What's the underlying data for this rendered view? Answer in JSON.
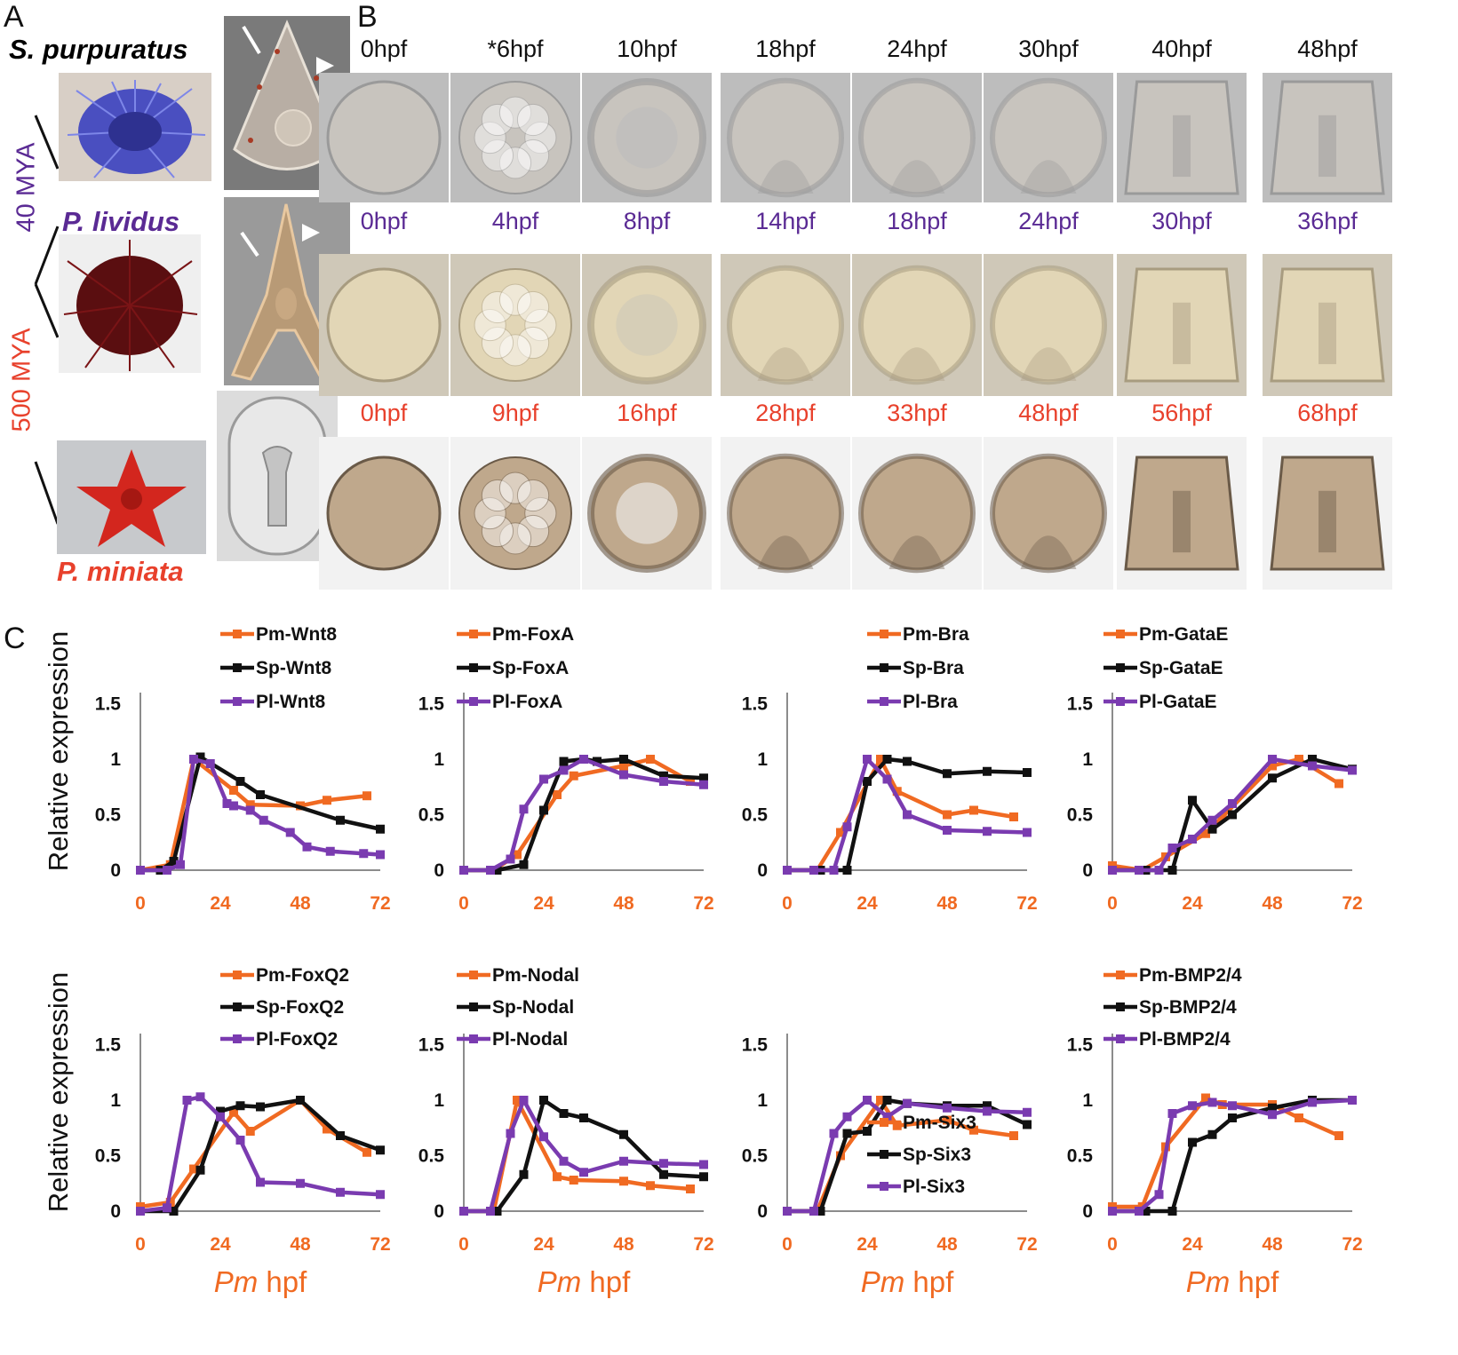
{
  "panels": {
    "a": "A",
    "b": "B",
    "c": "C"
  },
  "species": {
    "sp": {
      "name": "S. purpuratus",
      "color": "#111111"
    },
    "pl": {
      "name": "P. lividus",
      "color": "#5a2a94"
    },
    "pm": {
      "name": "P. miniata",
      "color": "#e8412c"
    }
  },
  "divergence": {
    "mya40": {
      "label": "40 MYA",
      "color": "#5a2a94"
    },
    "mya500": {
      "label": "500 MYA",
      "color": "#e8412c"
    }
  },
  "colors": {
    "pm": "#f06a22",
    "sp": "#111111",
    "pl": "#7a3bb0",
    "axis_ticks_x": "#f06a22"
  },
  "timepoints": {
    "sp": [
      "0hpf",
      "*6hpf",
      "10hpf",
      "18hpf",
      "24hpf",
      "30hpf",
      "40hpf",
      "48hpf"
    ],
    "pl": [
      "0hpf",
      "4hpf",
      "8hpf",
      "14hpf",
      "18hpf",
      "24hpf",
      "30hpf",
      "36hpf"
    ],
    "pm": [
      "0hpf",
      "9hpf",
      "16hpf",
      "28hpf",
      "33hpf",
      "48hpf",
      "56hpf",
      "68hpf"
    ]
  },
  "chart_common": {
    "ylabel": "Relative expression",
    "xlabel_italic": "Pm",
    "xlabel_rest": " hpf",
    "xticks": [
      "0",
      "24",
      "48",
      "72"
    ],
    "yticks": [
      "0",
      "0.5",
      "1",
      "1.5"
    ]
  },
  "chart_data": [
    {
      "type": "line",
      "gene": "Wnt8",
      "xlim": [
        0,
        72
      ],
      "ylim": [
        0,
        1.5
      ],
      "series": [
        {
          "name": "Pm-Wnt8",
          "x": [
            0,
            9,
            16,
            28,
            33,
            48,
            56,
            68
          ],
          "y": [
            0,
            0.05,
            1.0,
            0.72,
            0.59,
            0.58,
            0.63,
            0.67
          ]
        },
        {
          "name": "Sp-Wnt8",
          "x": [
            0,
            6,
            10,
            18,
            30,
            36,
            60,
            72
          ],
          "y": [
            0,
            0,
            0.08,
            1.02,
            0.8,
            0.68,
            0.45,
            0.37
          ]
        },
        {
          "name": "Pl-Wnt8",
          "x": [
            0,
            8,
            12,
            16,
            21,
            26,
            28,
            33,
            37,
            45,
            50,
            57,
            67,
            72
          ],
          "y": [
            0,
            0,
            0.05,
            1.0,
            0.96,
            0.6,
            0.58,
            0.54,
            0.45,
            0.34,
            0.21,
            0.17,
            0.15,
            0.14
          ]
        }
      ]
    },
    {
      "type": "line",
      "gene": "FoxA",
      "xlim": [
        0,
        72
      ],
      "ylim": [
        0,
        1.5
      ],
      "series": [
        {
          "name": "Pm-FoxA",
          "x": [
            0,
            9,
            16,
            28,
            33,
            48,
            56,
            68
          ],
          "y": [
            0,
            0,
            0.14,
            0.68,
            0.85,
            0.94,
            1.0,
            0.8
          ]
        },
        {
          "name": "Sp-FoxA",
          "x": [
            0,
            10,
            18,
            24,
            30,
            36,
            40,
            48,
            60,
            72
          ],
          "y": [
            0,
            0,
            0.05,
            0.54,
            0.98,
            1.0,
            0.98,
            1.0,
            0.85,
            0.83
          ]
        },
        {
          "name": "Pl-FoxA",
          "x": [
            0,
            8,
            14,
            18,
            24,
            30,
            36,
            48,
            60,
            72
          ],
          "y": [
            0,
            0,
            0.1,
            0.55,
            0.82,
            0.9,
            1.0,
            0.86,
            0.8,
            0.77
          ]
        }
      ]
    },
    {
      "type": "line",
      "gene": "Bra",
      "xlim": [
        0,
        72
      ],
      "ylim": [
        0,
        1.5
      ],
      "series": [
        {
          "name": "Pm-Bra",
          "x": [
            0,
            9,
            16,
            28,
            33,
            48,
            56,
            68
          ],
          "y": [
            0,
            0,
            0.34,
            1.0,
            0.71,
            0.5,
            0.54,
            0.48
          ]
        },
        {
          "name": "Sp-Bra",
          "x": [
            0,
            10,
            18,
            24,
            30,
            36,
            48,
            60,
            72
          ],
          "y": [
            0,
            0,
            0,
            0.8,
            1.0,
            0.98,
            0.87,
            0.89,
            0.88
          ]
        },
        {
          "name": "Pl-Bra",
          "x": [
            0,
            8,
            14,
            18,
            24,
            30,
            36,
            48,
            60,
            72
          ],
          "y": [
            0,
            0,
            0,
            0.39,
            1.0,
            0.82,
            0.5,
            0.36,
            0.35,
            0.34
          ]
        }
      ]
    },
    {
      "type": "line",
      "gene": "GataE",
      "xlim": [
        0,
        72
      ],
      "ylim": [
        0,
        1.5
      ],
      "series": [
        {
          "name": "Pm-GataE",
          "x": [
            0,
            9,
            16,
            28,
            33,
            48,
            56,
            68
          ],
          "y": [
            0.04,
            0,
            0.12,
            0.33,
            0.48,
            0.94,
            1.0,
            0.78
          ]
        },
        {
          "name": "Sp-GataE",
          "x": [
            0,
            10,
            18,
            24,
            30,
            36,
            48,
            60,
            72
          ],
          "y": [
            0,
            0,
            0,
            0.63,
            0.37,
            0.5,
            0.83,
            1.0,
            0.91
          ]
        },
        {
          "name": "Pl-GataE",
          "x": [
            0,
            8,
            14,
            18,
            24,
            30,
            36,
            48,
            60,
            72
          ],
          "y": [
            0,
            0,
            0,
            0.2,
            0.28,
            0.45,
            0.6,
            1.0,
            0.94,
            0.9
          ]
        }
      ]
    },
    {
      "type": "line",
      "gene": "FoxQ2",
      "xlim": [
        0,
        72
      ],
      "ylim": [
        0,
        1.5
      ],
      "series": [
        {
          "name": "Pm-FoxQ2",
          "x": [
            0,
            9,
            16,
            28,
            33,
            48,
            56,
            68
          ],
          "y": [
            0.04,
            0.08,
            0.38,
            0.89,
            0.72,
            1.0,
            0.74,
            0.53
          ]
        },
        {
          "name": "Sp-FoxQ2",
          "x": [
            0,
            10,
            18,
            24,
            30,
            36,
            48,
            60,
            72
          ],
          "y": [
            0,
            0,
            0.37,
            0.9,
            0.95,
            0.94,
            1.0,
            0.68,
            0.55
          ]
        },
        {
          "name": "Pl-FoxQ2",
          "x": [
            0,
            8,
            14,
            18,
            24,
            30,
            36,
            48,
            60,
            72
          ],
          "y": [
            0,
            0.03,
            1.0,
            1.03,
            0.85,
            0.64,
            0.26,
            0.25,
            0.17,
            0.15
          ]
        }
      ]
    },
    {
      "type": "line",
      "gene": "Nodal",
      "xlim": [
        0,
        72
      ],
      "ylim": [
        0,
        1.5
      ],
      "series": [
        {
          "name": "Pm-Nodal",
          "x": [
            0,
            9,
            16,
            28,
            33,
            48,
            56,
            68
          ],
          "y": [
            0,
            0,
            1.0,
            0.31,
            0.28,
            0.27,
            0.23,
            0.2
          ]
        },
        {
          "name": "Sp-Nodal",
          "x": [
            0,
            10,
            18,
            24,
            30,
            36,
            48,
            60,
            72
          ],
          "y": [
            0,
            0,
            0.33,
            1.0,
            0.88,
            0.84,
            0.69,
            0.33,
            0.31
          ]
        },
        {
          "name": "Pl-Nodal",
          "x": [
            0,
            8,
            14,
            18,
            24,
            30,
            36,
            48,
            60,
            72
          ],
          "y": [
            0,
            0,
            0.7,
            1.0,
            0.67,
            0.45,
            0.35,
            0.45,
            0.43,
            0.42
          ]
        }
      ]
    },
    {
      "type": "line",
      "gene": "Six3",
      "xlim": [
        0,
        72
      ],
      "ylim": [
        0,
        1.5
      ],
      "series": [
        {
          "name": "Pm-Six3",
          "x": [
            0,
            9,
            16,
            28,
            33,
            48,
            56,
            68
          ],
          "y": [
            0,
            0,
            0.5,
            1.0,
            0.77,
            0.82,
            0.73,
            0.68
          ]
        },
        {
          "name": "Sp-Six3",
          "x": [
            0,
            10,
            18,
            24,
            30,
            36,
            48,
            60,
            72
          ],
          "y": [
            0,
            0,
            0.7,
            0.72,
            1.0,
            0.97,
            0.95,
            0.95,
            0.78
          ]
        },
        {
          "name": "Pl-Six3",
          "x": [
            0,
            8,
            14,
            18,
            24,
            30,
            36,
            48,
            60,
            72
          ],
          "y": [
            0,
            0,
            0.7,
            0.85,
            1.0,
            0.85,
            0.97,
            0.93,
            0.9,
            0.89
          ]
        }
      ]
    },
    {
      "type": "line",
      "gene": "BMP2/4",
      "xlim": [
        0,
        72
      ],
      "ylim": [
        0,
        1.5
      ],
      "series": [
        {
          "name": "Pm-BMP2/4",
          "x": [
            0,
            9,
            16,
            28,
            33,
            48,
            56,
            68
          ],
          "y": [
            0.04,
            0.04,
            0.58,
            1.02,
            0.96,
            0.96,
            0.84,
            0.68
          ]
        },
        {
          "name": "Sp-BMP2/4",
          "x": [
            0,
            10,
            18,
            24,
            30,
            36,
            48,
            60,
            72
          ],
          "y": [
            0,
            0,
            0,
            0.62,
            0.69,
            0.84,
            0.93,
            1.0,
            1.0
          ]
        },
        {
          "name": "Pl-BMP2/4",
          "x": [
            0,
            8,
            14,
            18,
            24,
            30,
            36,
            48,
            60,
            72
          ],
          "y": [
            0,
            0,
            0.15,
            0.88,
            0.95,
            0.98,
            0.95,
            0.87,
            0.98,
            1.0
          ]
        }
      ]
    }
  ]
}
